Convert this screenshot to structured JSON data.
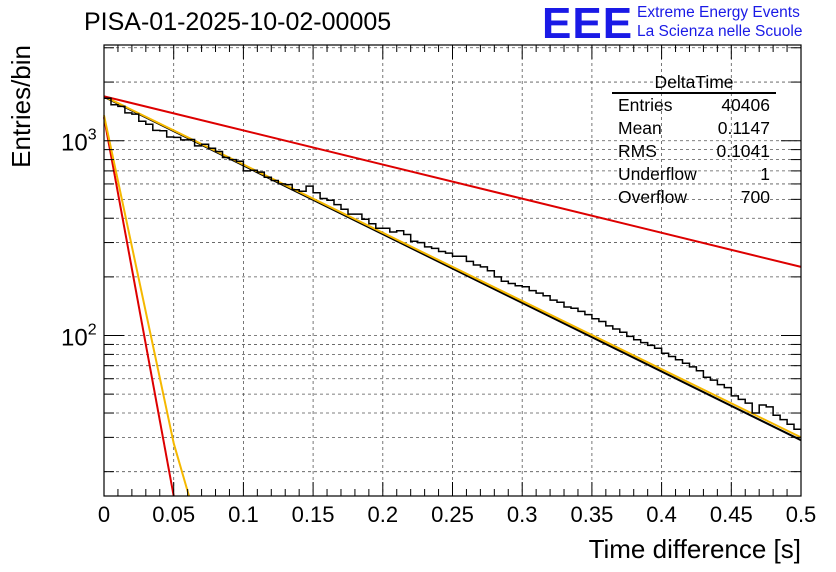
{
  "title": "PISA-01-2025-10-02-00005",
  "branding": {
    "logo_text": "EEE",
    "line1": "Extreme Energy Events",
    "line2": "La Scienza nelle Scuole",
    "color": "#1a1ae6"
  },
  "stats_box": {
    "name": "DeltaTime",
    "rows": [
      {
        "label": "Entries",
        "value": "40406"
      },
      {
        "label": "Mean",
        "value": "0.1147"
      },
      {
        "label": "RMS",
        "value": "0.1041"
      },
      {
        "label": "Underflow",
        "value": "1"
      },
      {
        "label": "Overflow",
        "value": "700"
      }
    ]
  },
  "chart_data": {
    "type": "histogram",
    "title": "PISA-01-2025-10-02-00005",
    "xlabel": "Time difference [s]",
    "ylabel": "Entries/bin",
    "xlim": [
      0,
      0.5
    ],
    "ylim": [
      15,
      3100
    ],
    "yscale": "log",
    "grid": true,
    "xticks": [
      0,
      0.05,
      0.1,
      0.15,
      0.2,
      0.25,
      0.3,
      0.35,
      0.4,
      0.45,
      0.5
    ],
    "xtick_labels": [
      "0",
      "0.05",
      "0.1",
      "0.15",
      "0.2",
      "0.25",
      "0.3",
      "0.35",
      "0.4",
      "0.45",
      "0.5"
    ],
    "yticks_major": [
      100,
      1000
    ],
    "ytick_labels": [
      "10",
      "10"
    ],
    "ytick_exponents": [
      "2",
      "3"
    ],
    "bin_width": 0.005,
    "histogram_values": [
      1650,
      1530,
      1500,
      1390,
      1370,
      1260,
      1215,
      1130,
      1125,
      1045,
      1040,
      1010,
      1015,
      940,
      960,
      915,
      880,
      820,
      800,
      785,
      700,
      705,
      690,
      650,
      625,
      600,
      595,
      560,
      550,
      585,
      540,
      505,
      495,
      470,
      445,
      420,
      420,
      395,
      375,
      355,
      355,
      340,
      345,
      330,
      305,
      300,
      285,
      280,
      270,
      265,
      255,
      255,
      240,
      230,
      225,
      215,
      200,
      190,
      185,
      180,
      178,
      170,
      165,
      160,
      152,
      148,
      140,
      138,
      133,
      128,
      122,
      118,
      112,
      108,
      104,
      99,
      95,
      92,
      89,
      86,
      81,
      78,
      75,
      72,
      69,
      66,
      61,
      59,
      56,
      54,
      49,
      47,
      45,
      40,
      44,
      43,
      39,
      37,
      35,
      33
    ],
    "series": [
      {
        "name": "fit-black",
        "color": "#000000",
        "type": "exponential",
        "y0": 1680,
        "y_end": 29
      },
      {
        "name": "fit-yellow",
        "color": "#f5b800",
        "type": "exponential",
        "y0": 1690,
        "y_end": 30
      },
      {
        "name": "fast-red",
        "color": "#dd0000",
        "type": "exponential",
        "y0": 1320,
        "x1": 0.05,
        "y1": 15
      },
      {
        "name": "fast-yellow",
        "color": "#f5b800",
        "type": "exponential",
        "y0": 1350,
        "x1": 0.05,
        "y1": 28,
        "x2": 0.061,
        "y2": 15
      },
      {
        "name": "slow-red",
        "color": "#dd0000",
        "type": "exponential",
        "y0": 1690,
        "y_end": 225
      }
    ]
  }
}
